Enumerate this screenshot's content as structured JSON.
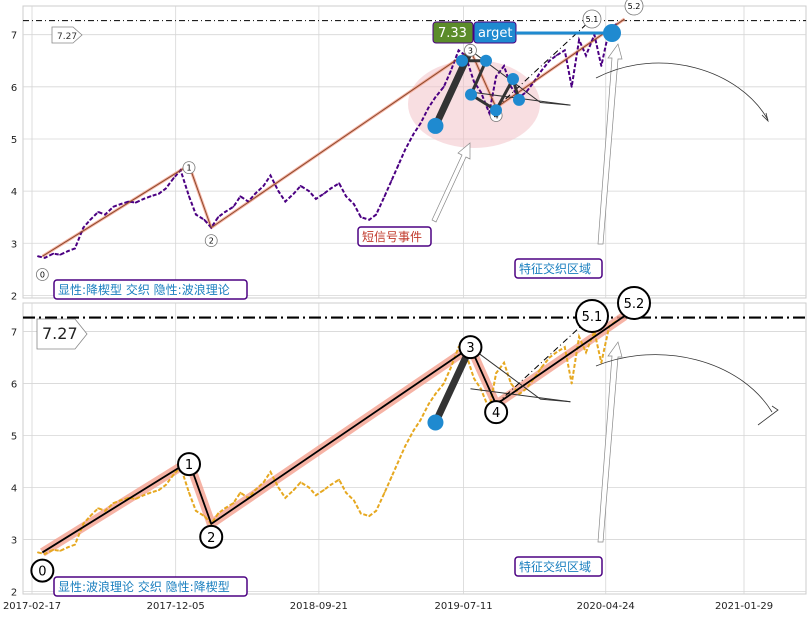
{
  "chart_data": [
    {
      "type": "line",
      "panel": "top",
      "ylim": [
        1.95,
        7.55
      ],
      "yticks": [
        "2",
        "3",
        "4",
        "5",
        "6",
        "7"
      ],
      "grid": true,
      "series": [
        {
          "kind": "price",
          "color": "#4b0082",
          "x": [
            "2017-03-01",
            "2017-03-15",
            "2017-04-01",
            "2017-04-15",
            "2017-05-01",
            "2017-05-15",
            "2017-06-01",
            "2017-06-15",
            "2017-07-01",
            "2017-07-15",
            "2017-08-01",
            "2017-08-15",
            "2017-09-01",
            "2017-09-15",
            "2017-10-01",
            "2017-10-15",
            "2017-11-01",
            "2017-11-15",
            "2017-12-01",
            "2017-12-15",
            "2018-01-01",
            "2018-01-15",
            "2018-02-01",
            "2018-02-15",
            "2018-03-01",
            "2018-03-15",
            "2018-04-01",
            "2018-04-15",
            "2018-05-01",
            "2018-05-15",
            "2018-06-01",
            "2018-06-15",
            "2018-07-01",
            "2018-07-15",
            "2018-08-01",
            "2018-08-15",
            "2018-09-01",
            "2018-09-15",
            "2018-10-01",
            "2018-10-15",
            "2018-11-01",
            "2018-11-15",
            "2018-12-01",
            "2018-12-15",
            "2019-01-01",
            "2019-01-15",
            "2019-02-01",
            "2019-02-15",
            "2019-03-01",
            "2019-03-15",
            "2019-04-01",
            "2019-04-15",
            "2019-05-01",
            "2019-05-15",
            "2019-06-01",
            "2019-06-15",
            "2019-07-01",
            "2019-07-15",
            "2019-08-01",
            "2019-08-15",
            "2019-09-01",
            "2019-09-15",
            "2019-10-01",
            "2019-10-15",
            "2019-11-01",
            "2019-11-15",
            "2019-12-01",
            "2019-12-15",
            "2020-01-01",
            "2020-01-15",
            "2020-02-01",
            "2020-02-15",
            "2020-03-01",
            "2020-03-15",
            "2020-04-01",
            "2020-04-15",
            "2020-05-01",
            "2020-05-15"
          ],
          "y": [
            2.75,
            2.72,
            2.8,
            2.78,
            2.85,
            2.9,
            3.3,
            3.45,
            3.6,
            3.55,
            3.7,
            3.75,
            3.8,
            3.78,
            3.85,
            3.9,
            3.95,
            4.05,
            4.25,
            4.4,
            3.9,
            3.55,
            3.45,
            3.3,
            3.5,
            3.6,
            3.7,
            3.9,
            3.8,
            3.95,
            4.1,
            4.3,
            4.0,
            3.8,
            3.95,
            4.1,
            4.0,
            3.85,
            3.95,
            4.05,
            4.15,
            3.9,
            3.75,
            3.5,
            3.45,
            3.55,
            3.9,
            4.2,
            4.5,
            4.8,
            5.1,
            5.3,
            5.6,
            5.8,
            6.0,
            6.3,
            6.7,
            6.6,
            6.1,
            5.9,
            5.5,
            6.2,
            6.4,
            6.0,
            5.8,
            5.9,
            6.1,
            6.3,
            6.5,
            6.6,
            6.7,
            6.0,
            6.9,
            6.6,
            7.0,
            6.4,
            7.1,
            7.2
          ]
        },
        {
          "kind": "wave",
          "color": "#8b4a2b",
          "x": [
            "2017-03-10",
            "2018-01-01",
            "2018-02-15",
            "2019-07-25",
            "2019-09-15",
            "2020-06-01"
          ],
          "y": [
            2.75,
            4.5,
            3.3,
            6.7,
            5.6,
            7.3
          ]
        }
      ],
      "target_line": 7.27,
      "annotations": [
        "0",
        "1",
        "2",
        "3",
        "4",
        "5.1",
        "5.2"
      ]
    },
    {
      "type": "line",
      "panel": "bottom",
      "ylim": [
        1.95,
        7.55
      ],
      "yticks": [
        "2",
        "3",
        "4",
        "5",
        "6",
        "7"
      ],
      "grid": true,
      "series": [
        {
          "kind": "price",
          "color": "#e6a820",
          "x": [
            "2017-03-01",
            "2017-03-15",
            "2017-04-01",
            "2017-04-15",
            "2017-05-01",
            "2017-05-15",
            "2017-06-01",
            "2017-06-15",
            "2017-07-01",
            "2017-07-15",
            "2017-08-01",
            "2017-08-15",
            "2017-09-01",
            "2017-09-15",
            "2017-10-01",
            "2017-10-15",
            "2017-11-01",
            "2017-11-15",
            "2017-12-01",
            "2017-12-15",
            "2018-01-01",
            "2018-01-15",
            "2018-02-01",
            "2018-02-15",
            "2018-03-01",
            "2018-03-15",
            "2018-04-01",
            "2018-04-15",
            "2018-05-01",
            "2018-05-15",
            "2018-06-01",
            "2018-06-15",
            "2018-07-01",
            "2018-07-15",
            "2018-08-01",
            "2018-08-15",
            "2018-09-01",
            "2018-09-15",
            "2018-10-01",
            "2018-10-15",
            "2018-11-01",
            "2018-11-15",
            "2018-12-01",
            "2018-12-15",
            "2019-01-01",
            "2019-01-15",
            "2019-02-01",
            "2019-02-15",
            "2019-03-01",
            "2019-03-15",
            "2019-04-01",
            "2019-04-15",
            "2019-05-01",
            "2019-05-15",
            "2019-06-01",
            "2019-06-15",
            "2019-07-01",
            "2019-07-15",
            "2019-08-01",
            "2019-08-15",
            "2019-09-01",
            "2019-09-15",
            "2019-10-01",
            "2019-10-15",
            "2019-11-01",
            "2019-11-15",
            "2019-12-01",
            "2019-12-15",
            "2020-01-01",
            "2020-01-15",
            "2020-02-01",
            "2020-02-15",
            "2020-03-01",
            "2020-03-15",
            "2020-04-01",
            "2020-04-15",
            "2020-05-01",
            "2020-05-15"
          ],
          "y": [
            2.75,
            2.72,
            2.8,
            2.78,
            2.85,
            2.9,
            3.3,
            3.45,
            3.6,
            3.55,
            3.7,
            3.75,
            3.8,
            3.78,
            3.85,
            3.9,
            3.95,
            4.05,
            4.25,
            4.4,
            3.9,
            3.55,
            3.45,
            3.3,
            3.5,
            3.6,
            3.7,
            3.9,
            3.8,
            3.95,
            4.1,
            4.3,
            4.0,
            3.8,
            3.95,
            4.1,
            4.0,
            3.85,
            3.95,
            4.05,
            4.15,
            3.9,
            3.75,
            3.5,
            3.45,
            3.55,
            3.9,
            4.2,
            4.5,
            4.8,
            5.1,
            5.3,
            5.6,
            5.8,
            6.0,
            6.3,
            6.7,
            6.6,
            6.1,
            5.9,
            5.5,
            6.2,
            6.4,
            6.0,
            5.8,
            5.9,
            6.1,
            6.3,
            6.5,
            6.6,
            6.7,
            6.0,
            6.9,
            6.6,
            7.0,
            6.4,
            7.1,
            7.2
          ]
        },
        {
          "kind": "wave",
          "color": "#000000",
          "x": [
            "2017-03-10",
            "2018-01-01",
            "2018-02-15",
            "2019-07-25",
            "2019-09-15",
            "2020-06-01"
          ],
          "y": [
            2.75,
            4.5,
            3.3,
            6.7,
            5.6,
            7.3
          ]
        }
      ],
      "target_line": 7.27,
      "annotations": [
        "0",
        "1",
        "2",
        "3",
        "4",
        "5.1",
        "5.2"
      ]
    }
  ],
  "x_axis": {
    "ticks": [
      "2017-02-17",
      "2017-12-05",
      "2018-09-21",
      "2019-07-11",
      "2020-04-24",
      "2021-01-29"
    ]
  },
  "top_panel": {
    "target_value_label": "7.27",
    "target_badge_value": "7.33",
    "target_badge_text": "arget",
    "event_box": "短信号事件",
    "region_box": "特征交织区域",
    "legend_box": "显性:降楔型 交织 隐性:波浪理论"
  },
  "bottom_panel": {
    "target_value_label": "7.27",
    "region_box": "特征交织区域",
    "legend_box": "显性:波浪理论 交织 隐性:降楔型"
  },
  "colors": {
    "top_price": "#4b0082",
    "bottom_price": "#e6a820",
    "wave_glow": "#f4a08f",
    "marker_blue": "#1f8ad0",
    "badge_green": "#5b8c2a",
    "box_border": "#4b0082"
  }
}
